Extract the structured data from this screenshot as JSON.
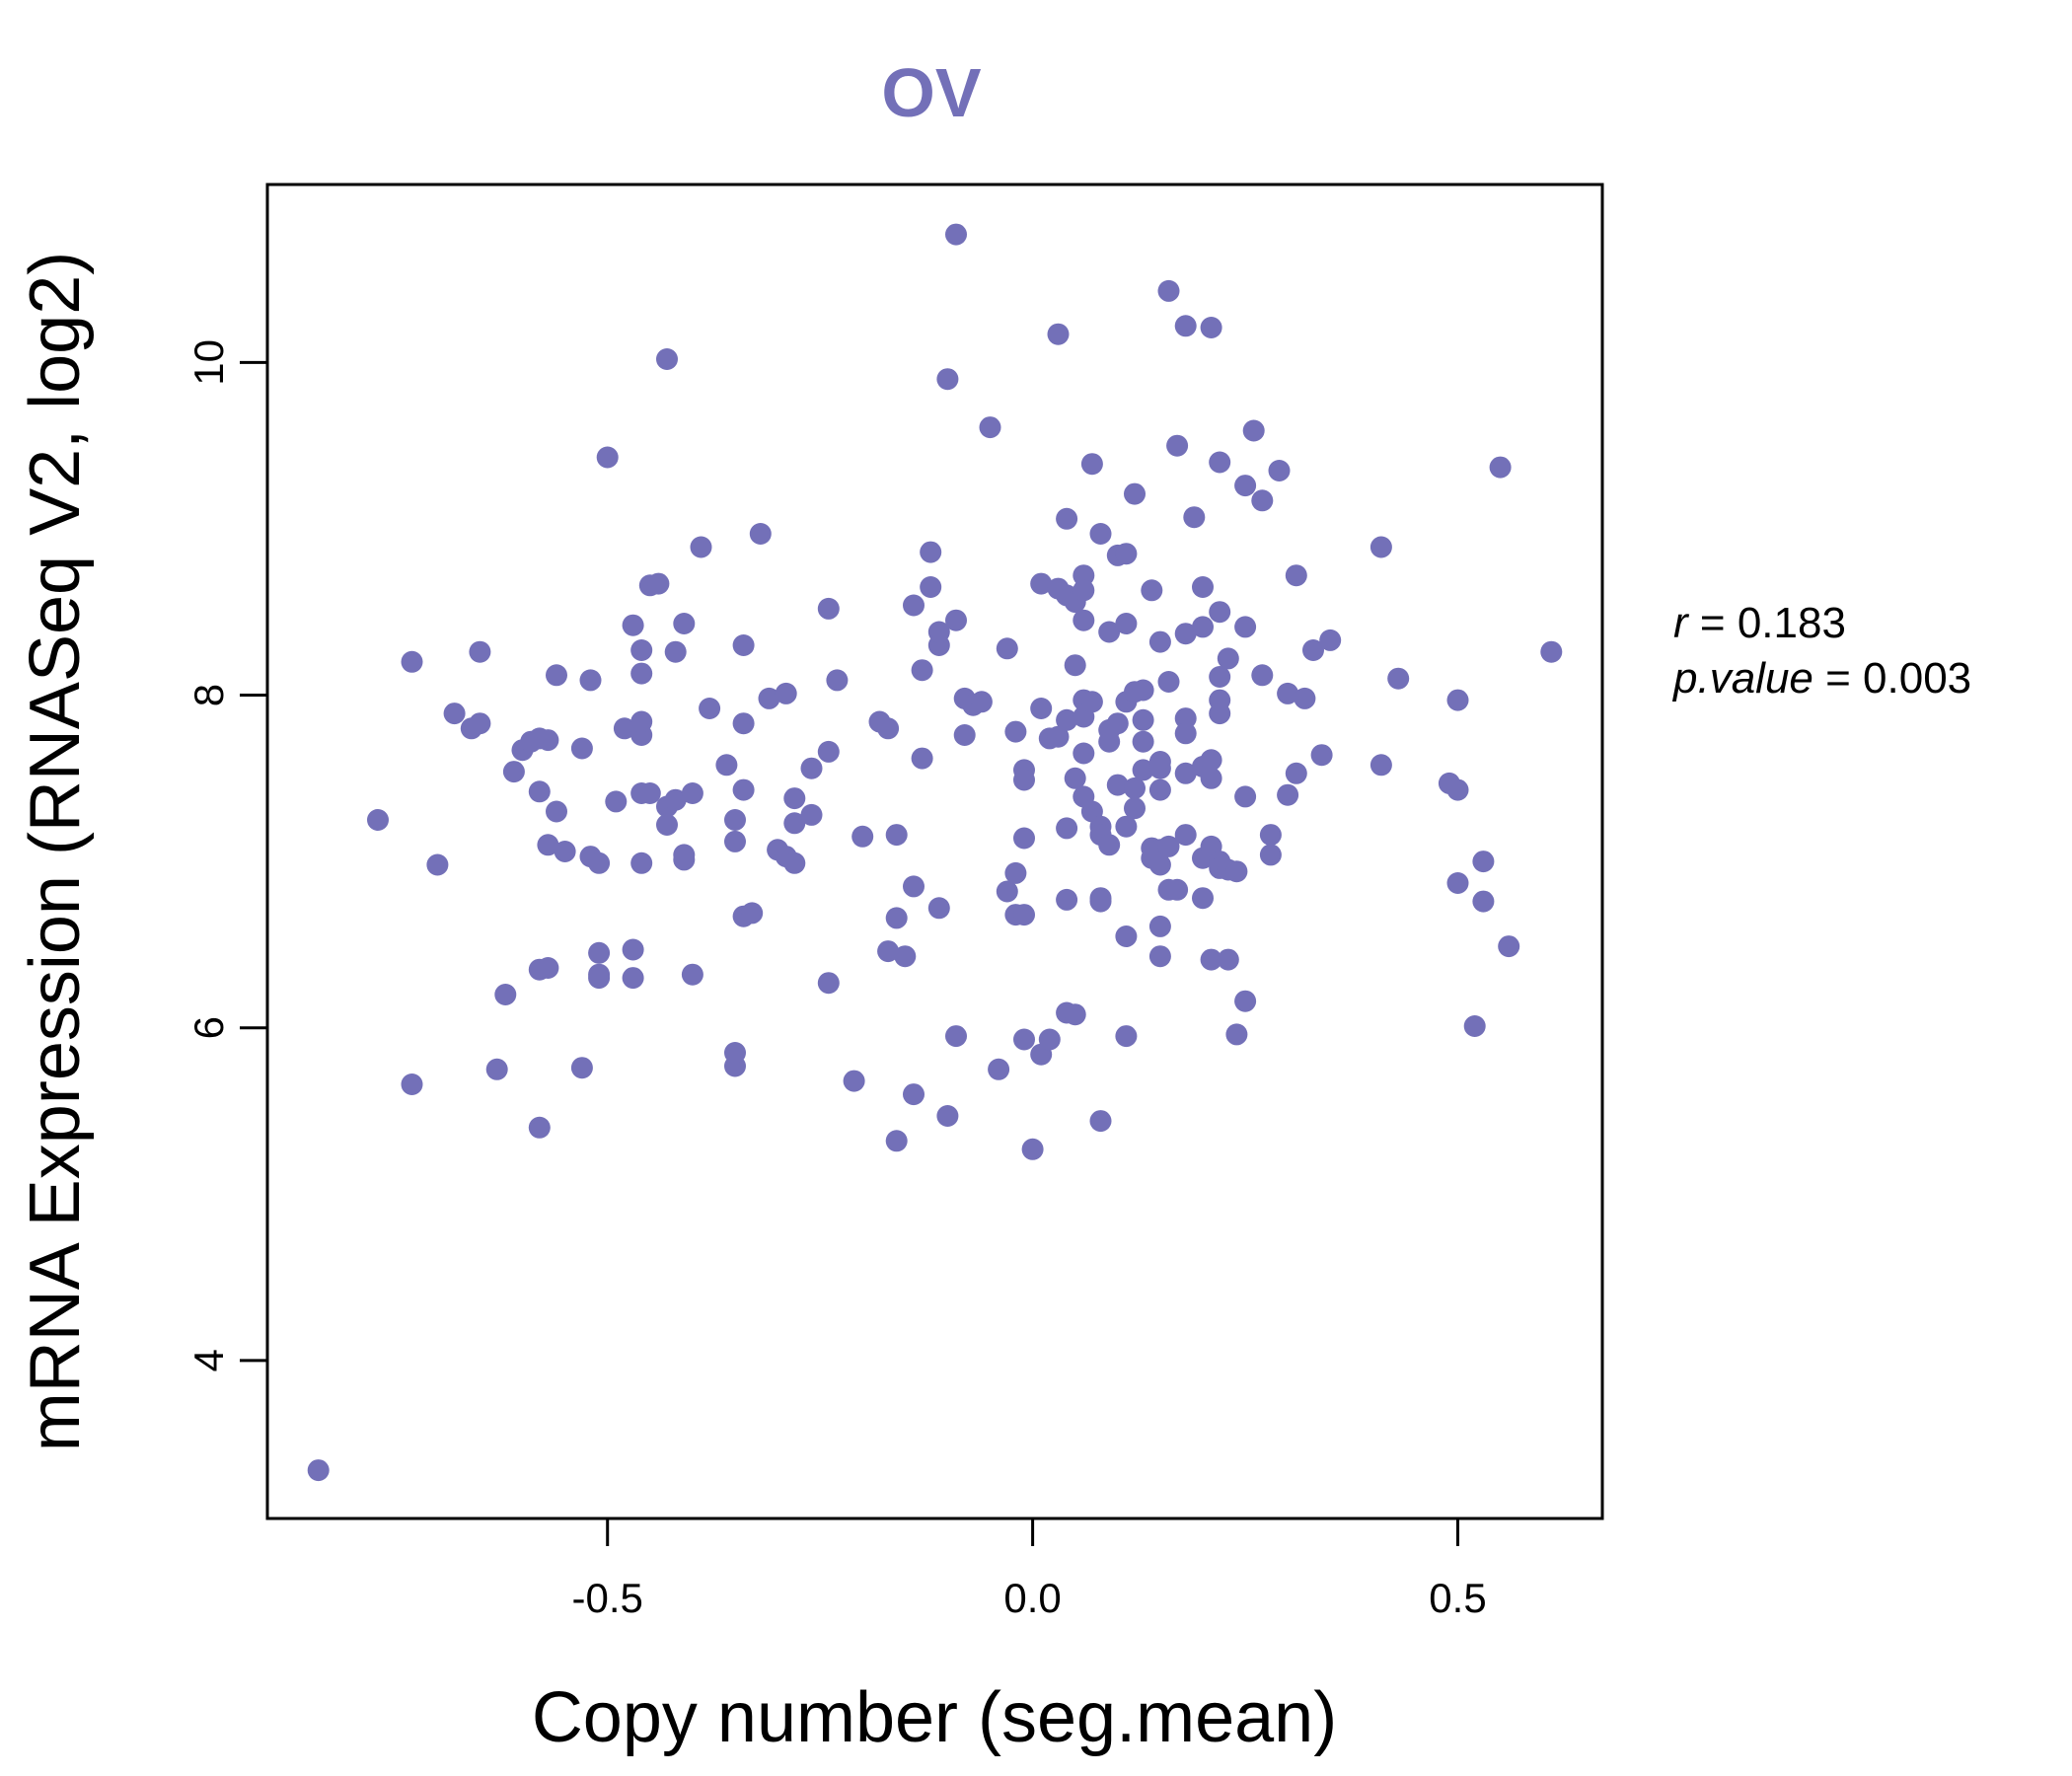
{
  "chart_data": {
    "type": "scatter",
    "title": "OV",
    "xlabel": "Copy number (seg.mean)",
    "ylabel": "mRNA Expression (RNASeq V2, log2)",
    "xlim": [
      -0.9,
      0.67
    ],
    "ylim": [
      3.05,
      11.07
    ],
    "xticks": [
      -0.5,
      0.0,
      0.5
    ],
    "xtick_labels": [
      "-0.5",
      "0.0",
      "0.5"
    ],
    "yticks": [
      4,
      6,
      8,
      10
    ],
    "ytick_labels": [
      "4",
      "6",
      "8",
      "10"
    ],
    "grid": false,
    "point_color": "#7370b8",
    "title_color": "#7370b8",
    "stats": {
      "r_label": "r",
      "r_value": "0.183",
      "p_label": "p.value",
      "p_value": "0.003"
    },
    "points": [
      [
        -0.84,
        3.34
      ],
      [
        -0.77,
        7.25
      ],
      [
        -0.73,
        8.2
      ],
      [
        -0.73,
        5.66
      ],
      [
        -0.7,
        6.98
      ],
      [
        -0.68,
        7.89
      ],
      [
        -0.66,
        7.8
      ],
      [
        -0.65,
        7.83
      ],
      [
        -0.65,
        8.26
      ],
      [
        -0.63,
        5.75
      ],
      [
        -0.62,
        6.2
      ],
      [
        -0.61,
        7.54
      ],
      [
        -0.6,
        7.67
      ],
      [
        -0.59,
        7.72
      ],
      [
        -0.58,
        7.74
      ],
      [
        -0.58,
        6.35
      ],
      [
        -0.57,
        7.73
      ],
      [
        -0.57,
        6.36
      ],
      [
        -0.58,
        5.4
      ],
      [
        -0.58,
        7.42
      ],
      [
        -0.57,
        7.1
      ],
      [
        -0.56,
        7.3
      ],
      [
        -0.56,
        8.12
      ],
      [
        -0.55,
        7.06
      ],
      [
        -0.53,
        5.76
      ],
      [
        -0.53,
        7.68
      ],
      [
        -0.52,
        7.03
      ],
      [
        -0.52,
        8.09
      ],
      [
        -0.51,
        6.99
      ],
      [
        -0.51,
        6.45
      ],
      [
        -0.51,
        6.32
      ],
      [
        -0.51,
        6.3
      ],
      [
        -0.5,
        9.43
      ],
      [
        -0.49,
        7.36
      ],
      [
        -0.48,
        7.8
      ],
      [
        -0.47,
        6.47
      ],
      [
        -0.47,
        8.42
      ],
      [
        -0.47,
        6.3
      ],
      [
        -0.46,
        8.13
      ],
      [
        -0.46,
        7.76
      ],
      [
        -0.46,
        7.84
      ],
      [
        -0.46,
        8.27
      ],
      [
        -0.46,
        6.99
      ],
      [
        -0.46,
        7.41
      ],
      [
        -0.45,
        8.66
      ],
      [
        -0.45,
        7.41
      ],
      [
        -0.44,
        8.67
      ],
      [
        -0.43,
        7.22
      ],
      [
        -0.43,
        7.33
      ],
      [
        -0.43,
        10.02
      ],
      [
        -0.42,
        7.37
      ],
      [
        -0.42,
        8.26
      ],
      [
        -0.41,
        8.43
      ],
      [
        -0.41,
        7.04
      ],
      [
        -0.41,
        7.01
      ],
      [
        -0.4,
        6.32
      ],
      [
        -0.4,
        7.41
      ],
      [
        -0.39,
        8.89
      ],
      [
        -0.38,
        7.92
      ],
      [
        -0.36,
        7.58
      ],
      [
        -0.35,
        7.25
      ],
      [
        -0.35,
        7.12
      ],
      [
        -0.35,
        5.77
      ],
      [
        -0.35,
        5.85
      ],
      [
        -0.34,
        6.67
      ],
      [
        -0.34,
        7.43
      ],
      [
        -0.34,
        7.83
      ],
      [
        -0.34,
        8.3
      ],
      [
        -0.33,
        6.69
      ],
      [
        -0.32,
        8.97
      ],
      [
        -0.31,
        7.98
      ],
      [
        -0.3,
        7.07
      ],
      [
        -0.29,
        7.03
      ],
      [
        -0.29,
        8.01
      ],
      [
        -0.28,
        6.99
      ],
      [
        -0.28,
        7.23
      ],
      [
        -0.28,
        7.38
      ],
      [
        -0.26,
        7.28
      ],
      [
        -0.26,
        7.56
      ],
      [
        -0.24,
        6.27
      ],
      [
        -0.24,
        7.66
      ],
      [
        -0.24,
        8.52
      ],
      [
        -0.23,
        8.09
      ],
      [
        -0.21,
        5.68
      ],
      [
        -0.2,
        7.15
      ],
      [
        -0.18,
        7.84
      ],
      [
        -0.17,
        7.8
      ],
      [
        -0.17,
        6.46
      ],
      [
        -0.16,
        6.66
      ],
      [
        -0.16,
        7.16
      ],
      [
        -0.16,
        5.32
      ],
      [
        -0.15,
        6.43
      ],
      [
        -0.14,
        5.6
      ],
      [
        -0.14,
        6.85
      ],
      [
        -0.14,
        8.54
      ],
      [
        -0.13,
        7.62
      ],
      [
        -0.13,
        8.15
      ],
      [
        -0.12,
        8.86
      ],
      [
        -0.12,
        8.65
      ],
      [
        -0.11,
        8.3
      ],
      [
        -0.11,
        8.38
      ],
      [
        -0.11,
        6.72
      ],
      [
        -0.1,
        9.9
      ],
      [
        -0.1,
        5.47
      ],
      [
        -0.09,
        8.45
      ],
      [
        -0.09,
        10.77
      ],
      [
        -0.09,
        5.95
      ],
      [
        -0.08,
        7.98
      ],
      [
        -0.08,
        7.76
      ],
      [
        -0.07,
        7.94
      ],
      [
        -0.06,
        7.96
      ],
      [
        -0.05,
        9.61
      ],
      [
        -0.04,
        5.75
      ],
      [
        -0.03,
        8.28
      ],
      [
        -0.03,
        6.82
      ],
      [
        -0.02,
        7.78
      ],
      [
        -0.02,
        6.68
      ],
      [
        -0.02,
        6.93
      ],
      [
        -0.01,
        6.68
      ],
      [
        -0.01,
        5.93
      ],
      [
        -0.01,
        7.55
      ],
      [
        -0.01,
        7.14
      ],
      [
        -0.01,
        7.49
      ],
      [
        0.0,
        5.27
      ],
      [
        0.01,
        7.92
      ],
      [
        0.01,
        8.67
      ],
      [
        0.01,
        5.84
      ],
      [
        0.02,
        5.93
      ],
      [
        0.02,
        7.74
      ],
      [
        0.03,
        10.17
      ],
      [
        0.03,
        7.75
      ],
      [
        0.03,
        8.64
      ],
      [
        0.04,
        9.06
      ],
      [
        0.04,
        6.77
      ],
      [
        0.04,
        8.6
      ],
      [
        0.04,
        7.85
      ],
      [
        0.04,
        7.2
      ],
      [
        0.04,
        6.09
      ],
      [
        0.05,
        8.56
      ],
      [
        0.05,
        6.08
      ],
      [
        0.05,
        8.18
      ],
      [
        0.05,
        7.5
      ],
      [
        0.06,
        7.87
      ],
      [
        0.06,
        7.97
      ],
      [
        0.06,
        8.72
      ],
      [
        0.06,
        8.63
      ],
      [
        0.06,
        7.39
      ],
      [
        0.06,
        7.65
      ],
      [
        0.06,
        8.45
      ],
      [
        0.07,
        7.3
      ],
      [
        0.07,
        7.96
      ],
      [
        0.07,
        9.39
      ],
      [
        0.08,
        7.21
      ],
      [
        0.08,
        7.16
      ],
      [
        0.08,
        6.78
      ],
      [
        0.08,
        5.44
      ],
      [
        0.08,
        6.76
      ],
      [
        0.08,
        8.97
      ],
      [
        0.09,
        7.1
      ],
      [
        0.09,
        7.72
      ],
      [
        0.09,
        8.38
      ],
      [
        0.09,
        7.79
      ],
      [
        0.1,
        7.83
      ],
      [
        0.1,
        7.46
      ],
      [
        0.1,
        8.84
      ],
      [
        0.11,
        8.85
      ],
      [
        0.11,
        8.43
      ],
      [
        0.11,
        5.95
      ],
      [
        0.11,
        6.55
      ],
      [
        0.11,
        7.21
      ],
      [
        0.11,
        7.96
      ],
      [
        0.12,
        7.44
      ],
      [
        0.12,
        7.32
      ],
      [
        0.12,
        8.02
      ],
      [
        0.12,
        9.21
      ],
      [
        0.13,
        7.85
      ],
      [
        0.13,
        8.03
      ],
      [
        0.13,
        7.72
      ],
      [
        0.13,
        7.55
      ],
      [
        0.14,
        8.63
      ],
      [
        0.14,
        7.08
      ],
      [
        0.14,
        7.02
      ],
      [
        0.15,
        7.6
      ],
      [
        0.15,
        7.43
      ],
      [
        0.15,
        7.56
      ],
      [
        0.15,
        8.32
      ],
      [
        0.15,
        7.07
      ],
      [
        0.15,
        6.98
      ],
      [
        0.15,
        6.61
      ],
      [
        0.15,
        6.43
      ],
      [
        0.16,
        8.08
      ],
      [
        0.16,
        10.43
      ],
      [
        0.16,
        7.09
      ],
      [
        0.16,
        6.83
      ],
      [
        0.17,
        9.5
      ],
      [
        0.17,
        6.83
      ],
      [
        0.18,
        8.37
      ],
      [
        0.18,
        10.22
      ],
      [
        0.18,
        7.86
      ],
      [
        0.18,
        7.53
      ],
      [
        0.18,
        7.16
      ],
      [
        0.18,
        7.77
      ],
      [
        0.19,
        9.07
      ],
      [
        0.2,
        8.65
      ],
      [
        0.2,
        7.02
      ],
      [
        0.2,
        6.78
      ],
      [
        0.2,
        7.57
      ],
      [
        0.2,
        8.41
      ],
      [
        0.21,
        7.61
      ],
      [
        0.21,
        7.5
      ],
      [
        0.21,
        6.41
      ],
      [
        0.21,
        10.21
      ],
      [
        0.21,
        7.09
      ],
      [
        0.22,
        7.89
      ],
      [
        0.22,
        8.11
      ],
      [
        0.22,
        9.4
      ],
      [
        0.22,
        8.5
      ],
      [
        0.22,
        7.97
      ],
      [
        0.22,
        7.0
      ],
      [
        0.22,
        6.96
      ],
      [
        0.23,
        6.95
      ],
      [
        0.23,
        6.41
      ],
      [
        0.23,
        8.22
      ],
      [
        0.24,
        6.94
      ],
      [
        0.24,
        5.96
      ],
      [
        0.25,
        8.41
      ],
      [
        0.25,
        9.26
      ],
      [
        0.25,
        7.39
      ],
      [
        0.25,
        6.16
      ],
      [
        0.26,
        9.59
      ],
      [
        0.27,
        9.17
      ],
      [
        0.27,
        8.12
      ],
      [
        0.28,
        7.16
      ],
      [
        0.28,
        7.04
      ],
      [
        0.29,
        9.35
      ],
      [
        0.3,
        7.4
      ],
      [
        0.3,
        8.01
      ],
      [
        0.31,
        8.72
      ],
      [
        0.31,
        7.53
      ],
      [
        0.32,
        7.98
      ],
      [
        0.33,
        8.27
      ],
      [
        0.34,
        7.64
      ],
      [
        0.35,
        8.33
      ],
      [
        0.41,
        8.89
      ],
      [
        0.41,
        7.58
      ],
      [
        0.43,
        8.1
      ],
      [
        0.49,
        7.47
      ],
      [
        0.5,
        7.43
      ],
      [
        0.5,
        6.87
      ],
      [
        0.5,
        7.97
      ],
      [
        0.52,
        6.01
      ],
      [
        0.53,
        6.76
      ],
      [
        0.53,
        7.0
      ],
      [
        0.55,
        9.37
      ],
      [
        0.56,
        6.49
      ],
      [
        0.61,
        8.26
      ]
    ]
  }
}
